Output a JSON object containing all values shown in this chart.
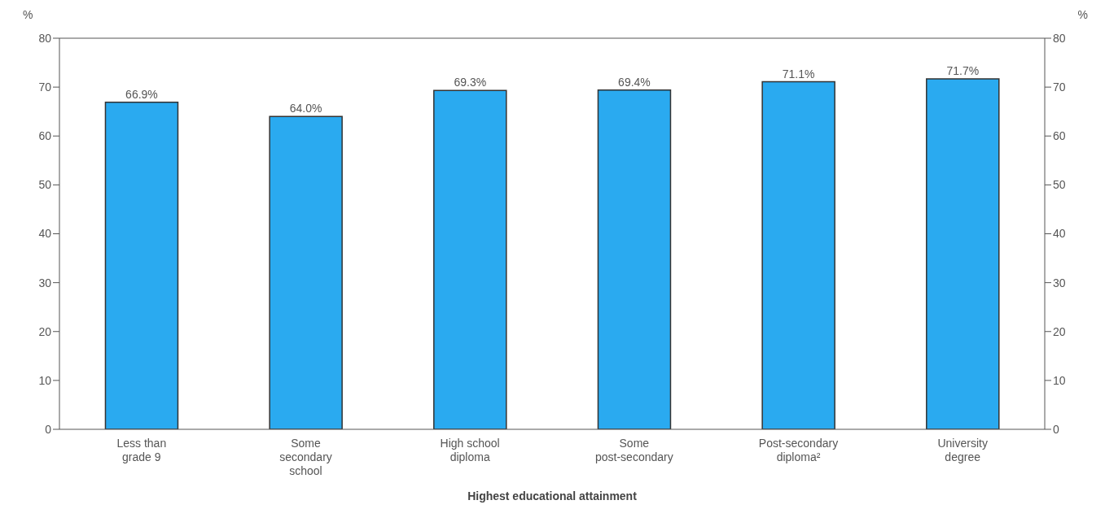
{
  "chart_data": {
    "type": "bar",
    "xlabel": "Highest educational attainment",
    "ylabel": "%",
    "y2label": "%",
    "categories": [
      "Less than grade 9",
      "Some secondary school",
      "High school diploma",
      "Some post-secondary",
      "Post-secondary diploma²",
      "University degree"
    ],
    "values": [
      66.9,
      64.0,
      69.3,
      69.4,
      71.1,
      71.7
    ],
    "value_labels": [
      "66.9%",
      "64.0%",
      "69.3%",
      "69.4%",
      "71.1%",
      "71.7%"
    ],
    "color": "#2aaaf0",
    "ylim": [
      0,
      80
    ],
    "yticks": [
      0,
      10,
      20,
      30,
      40,
      50,
      60,
      70,
      80
    ],
    "y2lim": [
      0,
      80
    ],
    "y2ticks": [
      0,
      10,
      20,
      30,
      40,
      50,
      60,
      70,
      80
    ],
    "grid": false
  }
}
